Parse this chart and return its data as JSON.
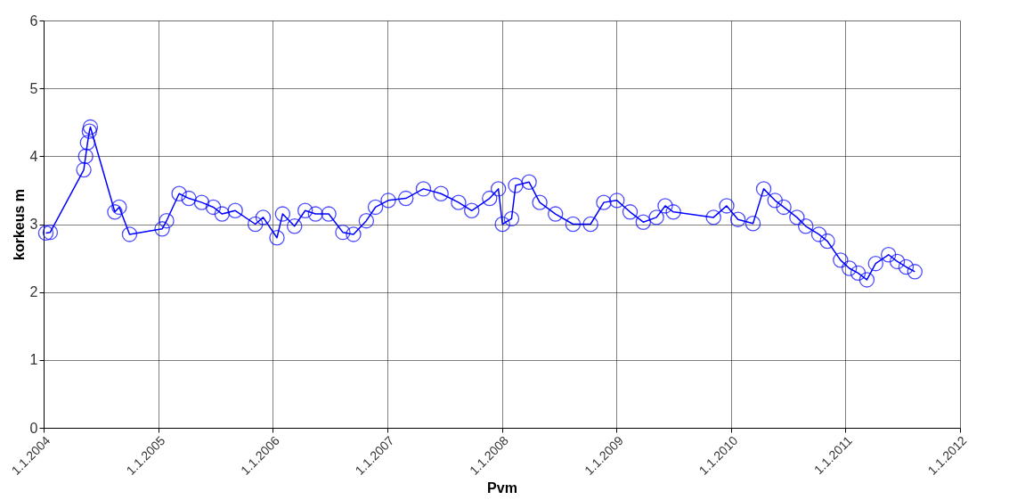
{
  "chart_data": {
    "type": "line",
    "xlabel": "Pvm",
    "ylabel": "korkeus m",
    "marker": "circle",
    "line_style": "solid",
    "grid": true,
    "legend": false,
    "xlim": [
      "2004-01-01",
      "2012-01-01"
    ],
    "xticks": [
      {
        "value": "2004-01-01",
        "label": "1.1.2004"
      },
      {
        "value": "2005-01-01",
        "label": "1.1.2005"
      },
      {
        "value": "2006-01-01",
        "label": "1.1.2006"
      },
      {
        "value": "2007-01-01",
        "label": "1.1.2007"
      },
      {
        "value": "2008-01-01",
        "label": "1.1.2008"
      },
      {
        "value": "2009-01-01",
        "label": "1.1.2009"
      },
      {
        "value": "2010-01-01",
        "label": "1.1.2010"
      },
      {
        "value": "2011-01-01",
        "label": "1.1.2011"
      },
      {
        "value": "2012-01-01",
        "label": "1.1.2012"
      }
    ],
    "ylim": [
      0,
      6
    ],
    "yticks": [
      0,
      1,
      2,
      3,
      4,
      5,
      6
    ],
    "x": [
      "2004-01-08",
      "2004-01-22",
      "2004-05-08",
      "2004-05-14",
      "2004-05-20",
      "2004-05-26",
      "2004-05-29",
      "2004-08-15",
      "2004-08-29",
      "2004-10-01",
      "2005-01-13",
      "2005-01-27",
      "2005-03-08",
      "2005-04-08",
      "2005-05-19",
      "2005-06-25",
      "2005-07-23",
      "2005-09-03",
      "2005-11-06",
      "2005-12-01",
      "2006-01-14",
      "2006-02-01",
      "2006-03-11",
      "2006-04-14",
      "2006-05-17",
      "2006-06-28",
      "2006-08-12",
      "2006-09-15",
      "2006-10-26",
      "2006-11-24",
      "2007-01-04",
      "2007-03-01",
      "2007-04-26",
      "2007-06-21",
      "2007-08-16",
      "2007-09-27",
      "2007-11-23",
      "2007-12-21",
      "2008-01-03",
      "2008-02-01",
      "2008-02-14",
      "2008-03-28",
      "2008-05-01",
      "2008-06-20",
      "2008-08-15",
      "2008-10-10",
      "2008-11-21",
      "2009-01-02",
      "2009-02-13",
      "2009-03-27",
      "2009-05-08",
      "2009-06-05",
      "2009-07-01",
      "2009-11-06",
      "2009-12-18",
      "2010-01-23",
      "2010-03-12",
      "2010-04-15",
      "2010-05-21",
      "2010-06-18",
      "2010-07-30",
      "2010-08-27",
      "2010-10-08",
      "2010-11-04",
      "2010-12-16",
      "2011-01-13",
      "2011-02-10",
      "2011-03-10",
      "2011-04-07",
      "2011-05-18",
      "2011-06-15",
      "2011-07-13",
      "2011-08-10"
    ],
    "series": [
      {
        "color": "#0000ff",
        "values": [
          2.87,
          2.88,
          3.8,
          4.0,
          4.2,
          4.37,
          4.43,
          3.18,
          3.25,
          2.85,
          2.93,
          3.05,
          3.45,
          3.38,
          3.32,
          3.25,
          3.15,
          3.2,
          3.0,
          3.1,
          2.8,
          3.15,
          2.97,
          3.2,
          3.15,
          3.15,
          2.88,
          2.85,
          3.05,
          3.25,
          3.35,
          3.38,
          3.52,
          3.45,
          3.32,
          3.2,
          3.38,
          3.52,
          3.0,
          3.08,
          3.57,
          3.62,
          3.32,
          3.15,
          3.0,
          3.0,
          3.32,
          3.35,
          3.18,
          3.03,
          3.1,
          3.27,
          3.18,
          3.1,
          3.27,
          3.07,
          3.01,
          3.52,
          3.35,
          3.25,
          3.1,
          2.97,
          2.85,
          2.75,
          2.47,
          2.35,
          2.28,
          2.18,
          2.42,
          2.55,
          2.45,
          2.37,
          2.3
        ]
      }
    ]
  }
}
